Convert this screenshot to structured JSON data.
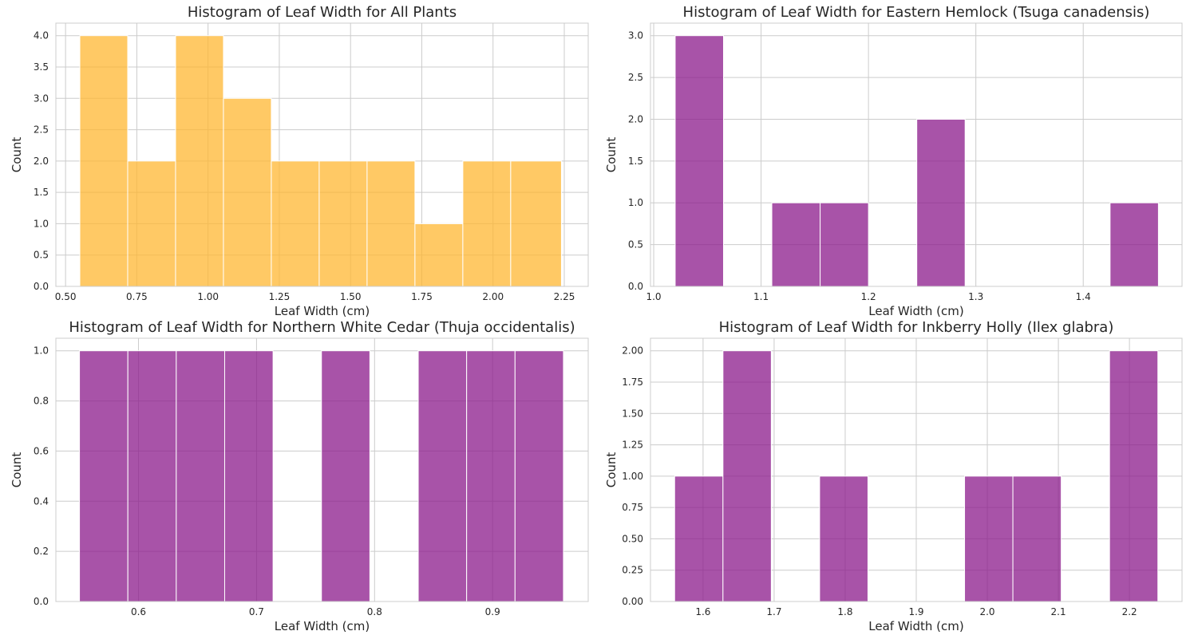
{
  "chart_data": [
    {
      "type": "bar",
      "title": "Histogram of Leaf Width for All Plants",
      "xlabel": "Leaf Width (cm)",
      "ylabel": "Count",
      "color": "#FFB732",
      "xlim": [
        0.466,
        2.334
      ],
      "ylim": [
        0,
        4.2
      ],
      "xticks": [
        0.5,
        0.75,
        1.0,
        1.25,
        1.5,
        1.75,
        2.0,
        2.25
      ],
      "xtick_labels": [
        "0.50",
        "0.75",
        "1.00",
        "1.25",
        "1.50",
        "1.75",
        "2.00",
        "2.25"
      ],
      "yticks": [
        0,
        0.5,
        1.0,
        1.5,
        2.0,
        2.5,
        3.0,
        3.5,
        4.0
      ],
      "ytick_labels": [
        "0.0",
        "0.5",
        "1.0",
        "1.5",
        "2.0",
        "2.5",
        "3.0",
        "3.5",
        "4.0"
      ],
      "bin_edges": [
        0.55,
        0.718,
        0.886,
        1.054,
        1.222,
        1.39,
        1.558,
        1.726,
        1.894,
        2.062,
        2.24
      ],
      "values": [
        4,
        2,
        4,
        3,
        2,
        2,
        2,
        1,
        2,
        2
      ]
    },
    {
      "type": "bar",
      "title": "Histogram of Leaf Width for Eastern Hemlock (Tsuga canadensis)",
      "xlabel": "Leaf Width (cm)",
      "ylabel": "Count",
      "color": "#8B1A8B",
      "xlim": [
        0.997,
        1.492
      ],
      "ylim": [
        0,
        3.15
      ],
      "xticks": [
        1.0,
        1.1,
        1.2,
        1.3,
        1.4
      ],
      "xtick_labels": [
        "1.0",
        "1.1",
        "1.2",
        "1.3",
        "1.4"
      ],
      "yticks": [
        0,
        0.5,
        1.0,
        1.5,
        2.0,
        2.5,
        3.0
      ],
      "ytick_labels": [
        "0.0",
        "0.5",
        "1.0",
        "1.5",
        "2.0",
        "2.5",
        "3.0"
      ],
      "bin_edges": [
        1.02,
        1.065,
        1.11,
        1.155,
        1.2,
        1.245,
        1.29,
        1.335,
        1.38,
        1.425,
        1.47
      ],
      "values": [
        3,
        0,
        1,
        1,
        0,
        2,
        0,
        0,
        0,
        1
      ]
    },
    {
      "type": "bar",
      "title": "Histogram of Leaf Width for Northern White Cedar (Thuja occidentalis)",
      "xlabel": "Leaf Width (cm)",
      "ylabel": "Count",
      "color": "#8B1A8B",
      "xlim": [
        0.53,
        0.981
      ],
      "ylim": [
        0,
        1.05
      ],
      "xticks": [
        0.6,
        0.7,
        0.8,
        0.9
      ],
      "xtick_labels": [
        "0.6",
        "0.7",
        "0.8",
        "0.9"
      ],
      "yticks": [
        0,
        0.2,
        0.4,
        0.6,
        0.8,
        1.0
      ],
      "ytick_labels": [
        "0.0",
        "0.2",
        "0.4",
        "0.6",
        "0.8",
        "1.0"
      ],
      "bin_edges": [
        0.55,
        0.591,
        0.632,
        0.673,
        0.714,
        0.755,
        0.796,
        0.837,
        0.878,
        0.919,
        0.96
      ],
      "values": [
        1,
        1,
        1,
        1,
        0,
        1,
        0,
        1,
        1,
        1
      ]
    },
    {
      "type": "bar",
      "title": "Histogram of Leaf Width for Inkberry Holly (Ilex glabra)",
      "xlabel": "Leaf Width (cm)",
      "ylabel": "Count",
      "color": "#8B1A8B",
      "xlim": [
        1.526,
        2.274
      ],
      "ylim": [
        0,
        2.1
      ],
      "xticks": [
        1.6,
        1.7,
        1.8,
        1.9,
        2.0,
        2.1,
        2.2
      ],
      "xtick_labels": [
        "1.6",
        "1.7",
        "1.8",
        "1.9",
        "2.0",
        "2.1",
        "2.2"
      ],
      "yticks": [
        0,
        0.25,
        0.5,
        0.75,
        1.0,
        1.25,
        1.5,
        1.75,
        2.0
      ],
      "ytick_labels": [
        "0.00",
        "0.25",
        "0.50",
        "0.75",
        "1.00",
        "1.25",
        "1.50",
        "1.75",
        "2.00"
      ],
      "bin_edges": [
        1.56,
        1.628,
        1.696,
        1.764,
        1.832,
        1.9,
        1.968,
        2.036,
        2.104,
        2.172,
        2.24
      ],
      "values": [
        1,
        2,
        0,
        1,
        0,
        0,
        1,
        1,
        0,
        2
      ]
    }
  ]
}
